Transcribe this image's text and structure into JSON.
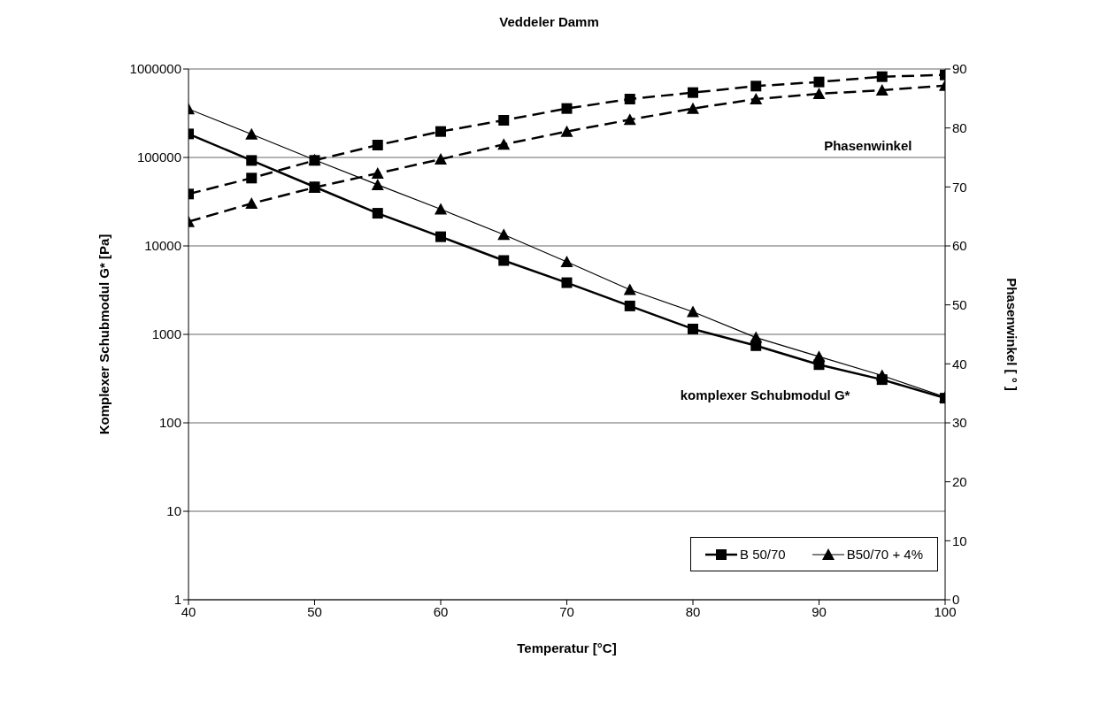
{
  "chart_data": {
    "type": "line",
    "title": "Veddeler Damm",
    "xlabel": "Temperatur [°C]",
    "ylabel": "Komplexer Schubmodul G* [Pa]",
    "y2label": "Phasenwinkel [ ° ]",
    "annotations": [
      "Phasenwinkel",
      "komplexer Schubmodul G*"
    ],
    "x": [
      40,
      45,
      50,
      55,
      60,
      65,
      70,
      75,
      80,
      85,
      90,
      95,
      100
    ],
    "series": [
      {
        "name": "B 50/70",
        "color": "#000000",
        "marker": "square",
        "line_style": "solid",
        "values": [
          184500,
          92500,
          46500,
          23400,
          12700,
          6840,
          3840,
          2095,
          1150,
          745,
          455,
          308,
          190
        ]
      },
      {
        "name": "B50/70 + 4%",
        "color": "#000000",
        "marker": "triangle",
        "line_style": "solid",
        "values": [
          353000,
          183000,
          94000,
          49100,
          26000,
          13400,
          6600,
          3200,
          1800,
          920,
          560,
          343,
          195
        ]
      },
      {
        "color": "#000000",
        "marker": "square",
        "line_style": "dashed",
        "axis": "y2",
        "values": [
          68.8,
          71.5,
          74.5,
          77.1,
          79.4,
          81.3,
          83.3,
          84.9,
          86.0,
          87.1,
          87.8,
          88.7,
          89.0
        ]
      },
      {
        "color": "#000000",
        "marker": "triangle",
        "line_style": "dashed",
        "axis": "y2",
        "values": [
          64.1,
          67.2,
          69.9,
          72.3,
          74.7,
          77.2,
          79.4,
          81.4,
          83.3,
          84.9,
          85.8,
          86.4,
          87.2
        ]
      }
    ],
    "xlim": [
      40,
      100
    ],
    "xticks": [
      40,
      50,
      60,
      70,
      80,
      90,
      100
    ],
    "ylim": [
      1,
      1000000
    ],
    "yticks": [
      1,
      10,
      100,
      1000,
      10000,
      100000,
      1000000
    ],
    "log": "y",
    "y2lim": [
      0,
      90
    ],
    "y2ticks": [
      0,
      10,
      20,
      30,
      40,
      50,
      60,
      70,
      80,
      90
    ],
    "grid": "y",
    "legend": "bottom right"
  }
}
